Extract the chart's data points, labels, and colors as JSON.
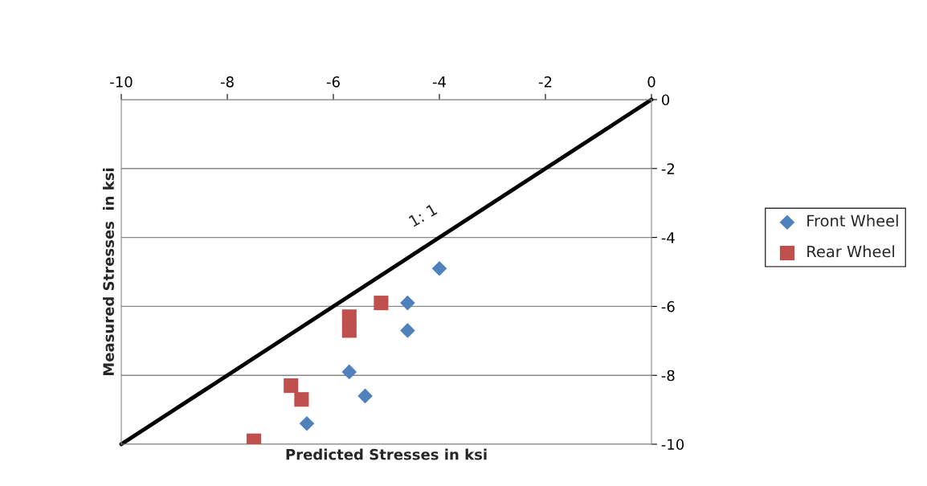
{
  "chart_data": {
    "type": "scatter",
    "xlabel": "Predicted Stresses in ksi",
    "ylabel": "Measured Stresses  in ksi",
    "xlim": [
      -10,
      0
    ],
    "xticks": [
      -10,
      -8,
      -6,
      -4,
      -2,
      0
    ],
    "ylim": [
      -10,
      0
    ],
    "yticks": [
      -10,
      -8,
      -6,
      -4,
      -2,
      0
    ],
    "grid": "y",
    "legend": "right",
    "series": [
      {
        "name": "Front Wheel",
        "color": "#4f81bd",
        "marker": "diamond",
        "x": [
          -4.0,
          -4.6,
          -4.6,
          -5.7,
          -5.4,
          -6.5
        ],
        "values": [
          -4.9,
          -5.9,
          -6.7,
          -7.9,
          -8.6,
          -9.4
        ]
      },
      {
        "name": "Rear Wheel",
        "color": "#c0504d",
        "marker": "square",
        "x": [
          -5.1,
          -5.7,
          -5.7,
          -6.8,
          -6.6,
          -7.5
        ],
        "values": [
          -5.9,
          -6.3,
          -6.7,
          -8.3,
          -8.7,
          -9.9
        ]
      },
      {
        "type": "line",
        "color": "#000000",
        "marker": "none",
        "x": [
          -10,
          0
        ],
        "values": [
          -10,
          0
        ]
      }
    ],
    "annotations": [
      "1: 1"
    ]
  }
}
